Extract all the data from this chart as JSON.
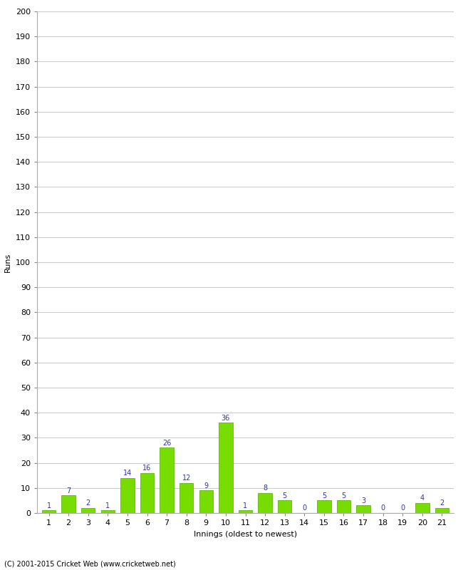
{
  "xlabel": "Innings (oldest to newest)",
  "ylabel": "Runs",
  "categories": [
    "1",
    "2",
    "3",
    "4",
    "5",
    "6",
    "7",
    "8",
    "9",
    "10",
    "11",
    "12",
    "13",
    "14",
    "15",
    "16",
    "17",
    "18",
    "19",
    "20",
    "21"
  ],
  "values": [
    1,
    7,
    2,
    1,
    14,
    16,
    26,
    12,
    9,
    36,
    1,
    8,
    5,
    0,
    5,
    5,
    3,
    0,
    0,
    4,
    2
  ],
  "bar_color": "#77dd00",
  "bar_edge_color": "#55aa00",
  "label_color": "#3333aa",
  "ylim": [
    0,
    200
  ],
  "yticks": [
    0,
    10,
    20,
    30,
    40,
    50,
    60,
    70,
    80,
    90,
    100,
    110,
    120,
    130,
    140,
    150,
    160,
    170,
    180,
    190,
    200
  ],
  "background_color": "#ffffff",
  "grid_color": "#cccccc",
  "footer": "(C) 2001-2015 Cricket Web (www.cricketweb.net)",
  "axis_label_fontsize": 8,
  "tick_fontsize": 8,
  "label_fontsize": 7,
  "footer_fontsize": 7
}
